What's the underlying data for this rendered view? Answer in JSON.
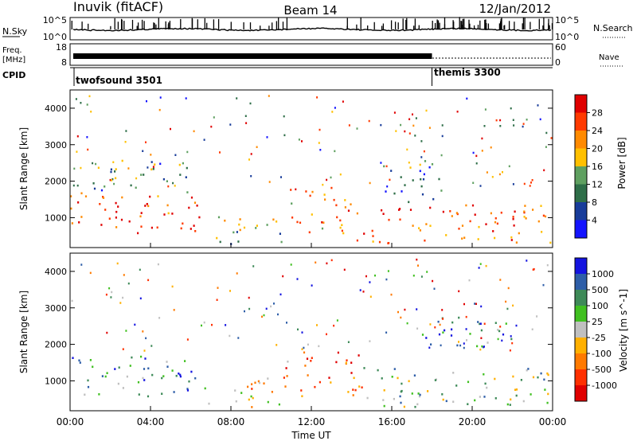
{
  "header": {
    "station": "Inuvik (fitACF)",
    "beam": "Beam 14",
    "date": "12/Jan/2012"
  },
  "status_panels": {
    "nsky_label": "N.Sky",
    "nsearch_label": "N.Search",
    "freq_label_line1": "Freq.",
    "freq_label_line2": "[MHz]",
    "nave_label": "Nave",
    "cpid_label": "CPID",
    "noise_left_ticks": [
      "10^5",
      "10^0"
    ],
    "noise_right_ticks": [
      "10^5",
      "10^0"
    ],
    "freq_ticks": [
      "18",
      "8"
    ],
    "nave_ticks": [
      "60",
      "0"
    ],
    "cpid_segments": [
      {
        "name": "twofsound 3501",
        "start_hour": 0,
        "end_hour": 18
      },
      {
        "name": "themis 3300",
        "start_hour": 18,
        "end_hour": 24
      }
    ]
  },
  "chart_data": [
    {
      "type": "heatmap",
      "title": "",
      "xlabel": "Time UT",
      "ylabel": "Slant Range [km]",
      "xlim": [
        0,
        24
      ],
      "ylim": [
        180,
        4500
      ],
      "x_ticks": [
        "00:00",
        "04:00",
        "08:00",
        "12:00",
        "16:00",
        "20:00",
        "00:00"
      ],
      "y_ticks": [
        1000,
        2000,
        3000,
        4000
      ],
      "colorbar": {
        "label": "Power [dB]",
        "ticks": [
          "28",
          "24",
          "20",
          "16",
          "12",
          "8",
          "4"
        ],
        "colors": [
          "#e00000",
          "#ff3a00",
          "#ff8a00",
          "#ffc000",
          "#5fa060",
          "#2e6e48",
          "#183c9a",
          "#1414ff"
        ]
      },
      "scatter_regions": [
        {
          "t0": 0.0,
          "t1": 6.8,
          "r0": 600,
          "r1": 1700,
          "level": 0.85
        },
        {
          "t0": 1.0,
          "t1": 6.0,
          "r0": 1700,
          "r1": 2600,
          "level": 0.35
        },
        {
          "t0": 6.8,
          "t1": 10.5,
          "r0": 300,
          "r1": 1100,
          "level": 0.45
        },
        {
          "t0": 10.6,
          "t1": 13.8,
          "r0": 600,
          "r1": 1900,
          "level": 0.7
        },
        {
          "t0": 13.8,
          "t1": 23.9,
          "r0": 300,
          "r1": 1400,
          "level": 0.8
        },
        {
          "t0": 15.5,
          "t1": 18.5,
          "r0": 1400,
          "r1": 2600,
          "level": 0.3
        }
      ]
    },
    {
      "type": "heatmap",
      "title": "",
      "xlabel": "Time UT",
      "ylabel": "Slant Range [km]",
      "xlim": [
        0,
        24
      ],
      "ylim": [
        180,
        4500
      ],
      "x_ticks": [
        "00:00",
        "04:00",
        "08:00",
        "12:00",
        "16:00",
        "20:00",
        "00:00"
      ],
      "y_ticks": [
        1000,
        2000,
        3000,
        4000
      ],
      "colorbar": {
        "label": "Velocity [m s^-1]",
        "ticks": [
          "1000",
          "500",
          "100",
          "25",
          "-25",
          "-100",
          "-500",
          "-1000"
        ],
        "colors": [
          "#1414e0",
          "#2e5ea8",
          "#3e8a58",
          "#40c020",
          "#c0c0c0",
          "#ffb000",
          "#ff7a00",
          "#ff3000",
          "#e00000"
        ]
      },
      "scatter_regions": [
        {
          "t0": 0.0,
          "t1": 6.8,
          "r0": 600,
          "r1": 1700,
          "level": 0.7
        },
        {
          "t0": 6.8,
          "t1": 10.5,
          "r0": 300,
          "r1": 1100,
          "level": 0.45
        },
        {
          "t0": 10.6,
          "t1": 14.5,
          "r0": 600,
          "r1": 1900,
          "level": 0.2
        },
        {
          "t0": 14.5,
          "t1": 23.9,
          "r0": 300,
          "r1": 1400,
          "level": 0.6
        },
        {
          "t0": 17.5,
          "t1": 22.0,
          "r0": 1800,
          "r1": 2800,
          "level": 0.75
        }
      ]
    }
  ]
}
